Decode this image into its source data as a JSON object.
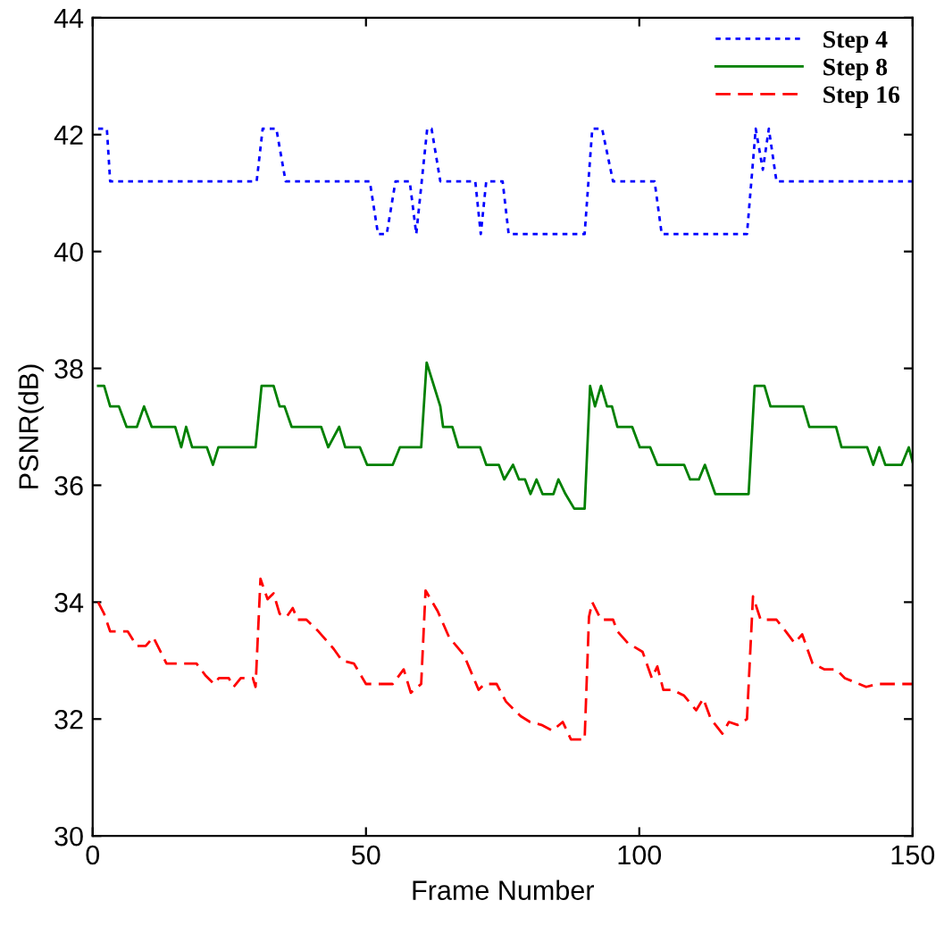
{
  "chart_data": {
    "type": "line",
    "xlabel": "Frame Number",
    "ylabel": "PSNR(dB)",
    "xlim": [
      0,
      150
    ],
    "xticks": [
      0,
      50,
      100,
      150
    ],
    "ylim": [
      30,
      44
    ],
    "yticks": [
      30,
      32,
      34,
      36,
      38,
      40,
      42,
      44
    ],
    "grid": false,
    "legend": "top right",
    "marker": "none",
    "series": [
      {
        "name": "Step 4",
        "color": "#0000ff",
        "line_style": "dotted",
        "x": [
          1,
          2.6,
          3.2,
          30,
          31.1,
          33.6,
          35.3,
          50.7,
          52.2,
          53.8,
          55.4,
          58,
          59.2,
          61.2,
          62,
          63.6,
          70,
          71,
          72,
          75,
          76.1,
          90,
          91.4,
          93.2,
          95.2,
          102.8,
          104.1,
          119.7,
          121.3,
          122.6,
          123.7,
          125.1,
          150
        ],
        "values": [
          42.1,
          42.1,
          41.2,
          41.2,
          42.1,
          42.1,
          41.2,
          41.2,
          40.3,
          40.3,
          41.2,
          41.2,
          40.3,
          42.1,
          42.1,
          41.2,
          41.2,
          40.3,
          41.2,
          41.2,
          40.3,
          40.3,
          42.1,
          42.1,
          41.2,
          41.2,
          40.3,
          40.3,
          42.1,
          41.4,
          42.1,
          41.2,
          41.2
        ]
      },
      {
        "name": "Step 8",
        "color": "#008000",
        "line_style": "solid",
        "x": [
          1,
          2.1,
          3.2,
          4.8,
          6.2,
          8.1,
          9.4,
          10.8,
          15.1,
          16.2,
          17.1,
          18.2,
          20.9,
          22,
          23,
          29.8,
          30.9,
          33.1,
          34.2,
          35.1,
          36.4,
          41.8,
          43.1,
          45.1,
          46.2,
          48.9,
          50.2,
          54.9,
          56.2,
          60.1,
          61.1,
          63.6,
          64.1,
          65.8,
          66.9,
          70.9,
          72,
          74.3,
          75.3,
          76.9,
          78,
          79.1,
          80.1,
          81.2,
          82.3,
          84.3,
          85.2,
          86.5,
          88.1,
          90,
          91,
          91.9,
          93,
          94.1,
          95,
          96,
          98.7,
          100.1,
          102,
          103.3,
          108.2,
          109.3,
          110.9,
          112,
          113.9,
          120,
          121.1,
          122.9,
          124,
          130,
          131.1,
          136,
          137,
          141.7,
          142.8,
          143.9,
          145,
          148,
          149.3,
          150
        ],
        "values": [
          37.7,
          37.7,
          37.35,
          37.35,
          37.0,
          37.0,
          37.35,
          37.0,
          37.0,
          36.65,
          37.0,
          36.65,
          36.65,
          36.35,
          36.65,
          36.65,
          37.7,
          37.7,
          37.35,
          37.35,
          37.0,
          37.0,
          36.65,
          37.0,
          36.65,
          36.65,
          36.35,
          36.35,
          36.65,
          36.65,
          38.1,
          37.35,
          37.0,
          37.0,
          36.65,
          36.65,
          36.35,
          36.35,
          36.1,
          36.35,
          36.1,
          36.1,
          35.85,
          36.1,
          35.85,
          35.85,
          36.1,
          35.85,
          35.6,
          35.6,
          37.7,
          37.35,
          37.7,
          37.35,
          37.35,
          37.0,
          37.0,
          36.65,
          36.65,
          36.35,
          36.35,
          36.1,
          36.1,
          36.35,
          35.85,
          35.85,
          37.7,
          37.7,
          37.35,
          37.35,
          37.0,
          37.0,
          36.65,
          36.65,
          36.35,
          36.65,
          36.35,
          36.35,
          36.65,
          36.4
        ]
      },
      {
        "name": "Step 16",
        "color": "#ff0000",
        "line_style": "dashed",
        "x": [
          1,
          2.1,
          3.2,
          4.3,
          6.4,
          8.1,
          9.7,
          11.1,
          13.5,
          19,
          20.6,
          22.2,
          23.1,
          24.9,
          25.8,
          27.1,
          29.3,
          29.8,
          30.7,
          32,
          33.1,
          34.2,
          35.5,
          36.6,
          37.5,
          39.1,
          41.3,
          44.1,
          45.6,
          47.8,
          50,
          54.9,
          56.9,
          58.2,
          60.1,
          60.9,
          63.1,
          65.2,
          67.9,
          70.6,
          71.7,
          73.9,
          75.6,
          78.3,
          80,
          82.1,
          84.1,
          86,
          87.5,
          90,
          90.8,
          91.4,
          93,
          95.2,
          96,
          97.9,
          100.6,
          102.3,
          103.3,
          104.4,
          106.1,
          108.2,
          110.4,
          111.7,
          113.1,
          115.2,
          116.4,
          118,
          119.7,
          120.8,
          122.2,
          125.1,
          126.8,
          128.4,
          129.8,
          131.7,
          133.9,
          136,
          137.6,
          141.5,
          143.6,
          146.9,
          150
        ],
        "values": [
          34.0,
          33.8,
          33.5,
          33.5,
          33.5,
          33.25,
          33.25,
          33.4,
          32.95,
          32.95,
          32.75,
          32.6,
          32.7,
          32.7,
          32.55,
          32.7,
          32.7,
          32.55,
          34.4,
          34.05,
          34.15,
          33.8,
          33.75,
          33.9,
          33.7,
          33.7,
          33.5,
          33.2,
          33.0,
          32.95,
          32.6,
          32.6,
          32.85,
          32.45,
          32.6,
          34.2,
          33.85,
          33.4,
          33.1,
          32.5,
          32.6,
          32.6,
          32.3,
          32.05,
          31.95,
          31.9,
          31.8,
          31.95,
          31.65,
          31.65,
          33.75,
          34.0,
          33.7,
          33.7,
          33.5,
          33.3,
          33.15,
          32.7,
          32.9,
          32.5,
          32.5,
          32.4,
          32.15,
          32.35,
          32.0,
          31.75,
          31.95,
          31.9,
          32.0,
          34.1,
          33.7,
          33.7,
          33.5,
          33.3,
          33.45,
          32.95,
          32.85,
          32.85,
          32.7,
          32.55,
          32.6,
          32.6,
          32.6
        ]
      }
    ]
  }
}
